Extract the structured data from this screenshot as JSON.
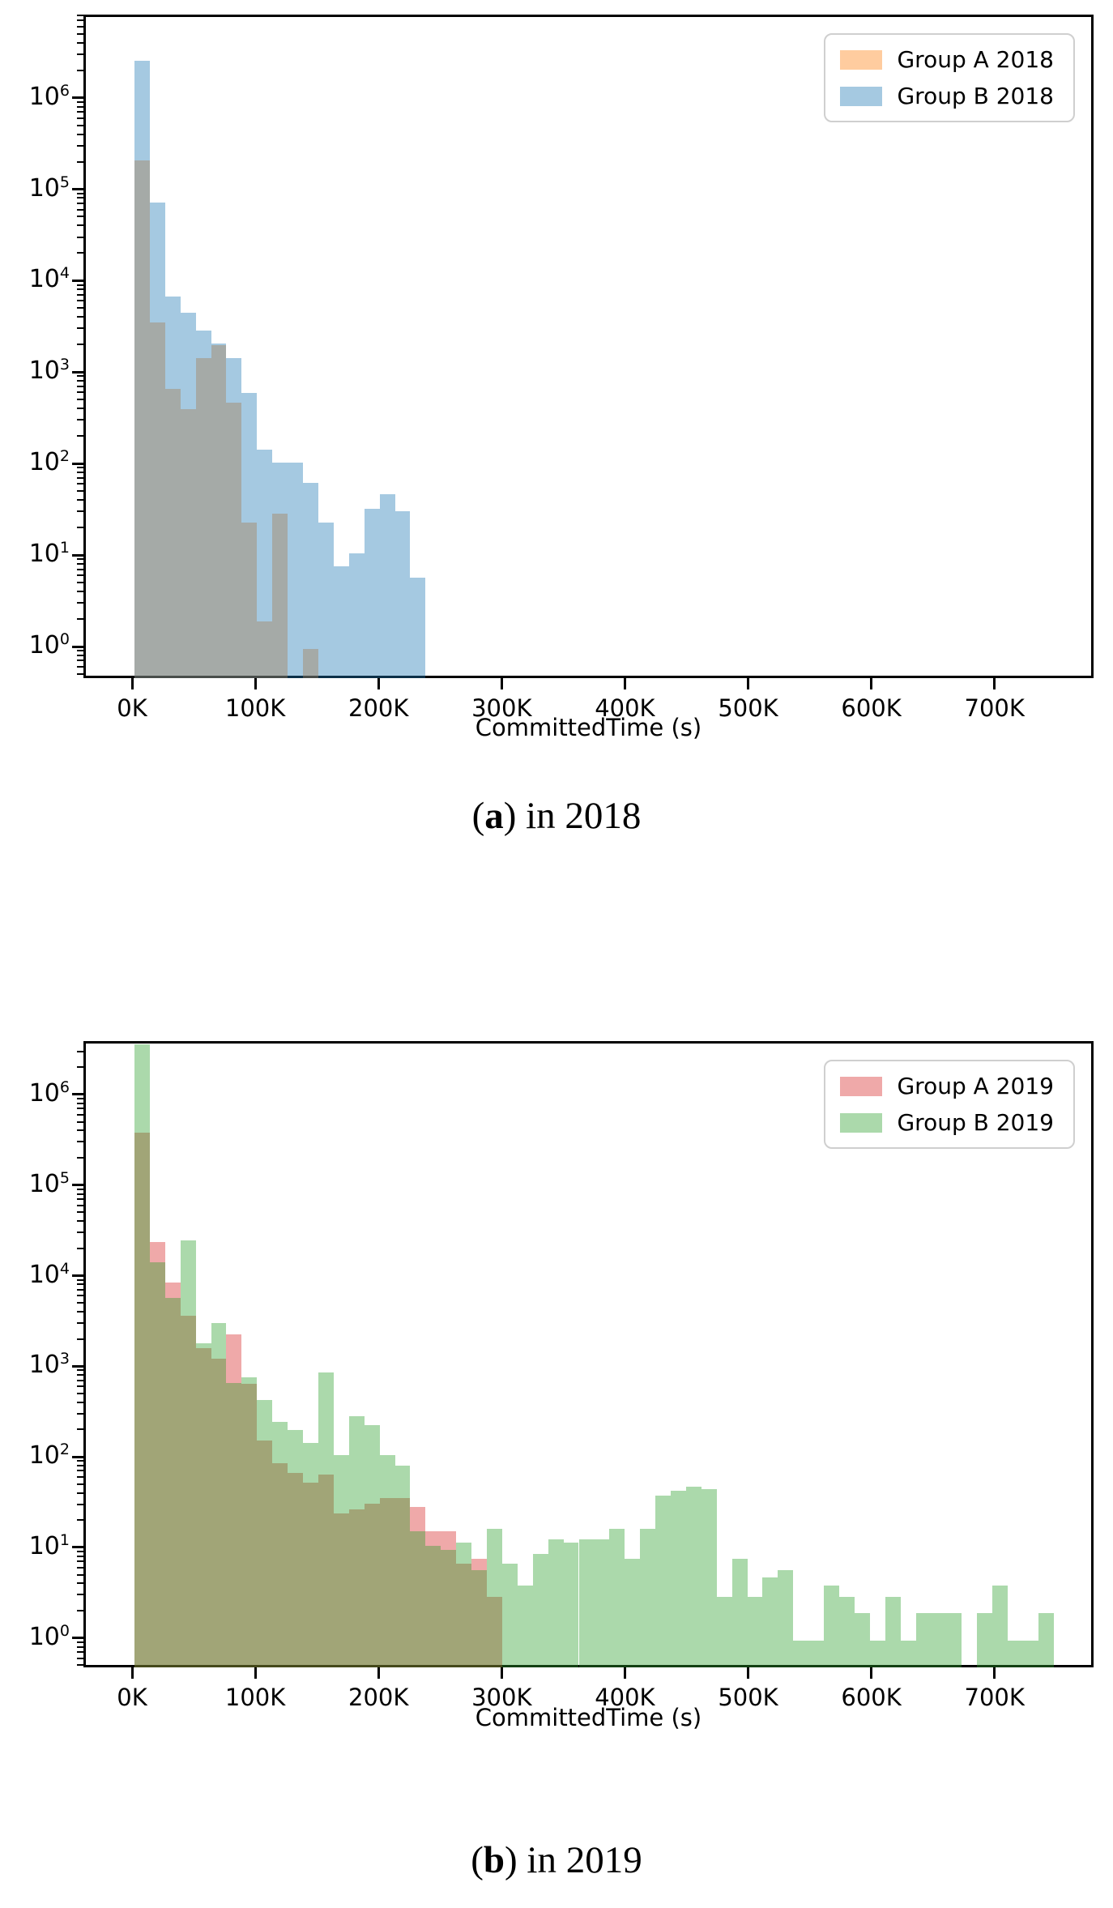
{
  "figure_caption_a": {
    "open": "(",
    "letter": "a",
    "rest": ") in 2018"
  },
  "figure_caption_b": {
    "open": "(",
    "letter": "b",
    "rest": ") in 2019"
  },
  "chart_data": [
    {
      "id": "a",
      "type": "histogram",
      "caption": "(a) in 2018",
      "xlabel": "CommittedTime (s)",
      "yscale": "log",
      "bin_start": 0,
      "bin_width": 12500,
      "x_tick_labels": [
        "0K",
        "100K",
        "200K",
        "300K",
        "400K",
        "500K",
        "600K",
        "700K"
      ],
      "x_tick_values": [
        0,
        100000,
        200000,
        300000,
        400000,
        500000,
        600000,
        700000
      ],
      "y_tick_exponents": [
        0,
        1,
        2,
        3,
        4,
        5,
        6
      ],
      "xlim": [
        -40000,
        780000
      ],
      "ylim": [
        0.45,
        8000000
      ],
      "legend_position": "upper right",
      "series": [
        {
          "name": "Group A 2018",
          "color_hex": "#ff7f0e",
          "fill": "rgba(255,127,14,0.4)",
          "values": [
            220000,
            3700,
            700,
            420,
            1500,
            2100,
            490,
            24,
            2,
            30,
            0,
            1,
            0,
            0,
            0,
            0,
            0,
            0,
            0,
            0
          ]
        },
        {
          "name": "Group B 2018",
          "color_hex": "#1f77b4",
          "fill": "rgba(31,119,180,0.4)",
          "values": [
            2700000,
            76000,
            7200,
            4700,
            3000,
            2200,
            1500,
            625,
            150,
            110,
            110,
            65,
            24,
            8,
            11,
            34,
            49,
            32,
            6,
            0
          ]
        }
      ]
    },
    {
      "id": "b",
      "type": "histogram",
      "caption": "(b) in 2019",
      "xlabel": "CommittedTime (s)",
      "yscale": "log",
      "bin_start": 0,
      "bin_width": 12500,
      "x_tick_labels": [
        "0K",
        "100K",
        "200K",
        "300K",
        "400K",
        "500K",
        "600K",
        "700K"
      ],
      "x_tick_values": [
        0,
        100000,
        200000,
        300000,
        400000,
        500000,
        600000,
        700000
      ],
      "y_tick_exponents": [
        0,
        1,
        2,
        3,
        4,
        5,
        6
      ],
      "xlim": [
        -40000,
        780000
      ],
      "ylim": [
        0.45,
        4500000
      ],
      "legend_position": "upper right",
      "series": [
        {
          "name": "Group A 2019",
          "color_hex": "#d62728",
          "fill": "rgba(214,39,40,0.4)",
          "values": [
            400000,
            25000,
            9000,
            3800,
            1700,
            1300,
            2400,
            680,
            160,
            90,
            70,
            55,
            68,
            25,
            28,
            32,
            37,
            37,
            30,
            16,
            16,
            7,
            8,
            3
          ]
        },
        {
          "name": "Group B 2019",
          "color_hex": "#2ca02c",
          "fill": "rgba(44,160,44,0.4)",
          "values": [
            3800000,
            15000,
            6000,
            26000,
            1900,
            3200,
            700,
            800,
            450,
            260,
            210,
            150,
            900,
            110,
            300,
            240,
            110,
            85,
            16,
            11,
            10,
            12,
            6,
            17,
            7,
            4,
            9,
            13,
            12,
            13,
            13,
            17,
            8,
            17,
            40,
            45,
            50,
            47,
            3,
            8,
            3,
            5,
            6,
            1,
            1,
            4,
            3,
            2,
            1,
            3,
            1,
            2,
            2,
            2,
            0,
            2,
            4,
            1,
            1,
            2
          ]
        }
      ]
    }
  ]
}
